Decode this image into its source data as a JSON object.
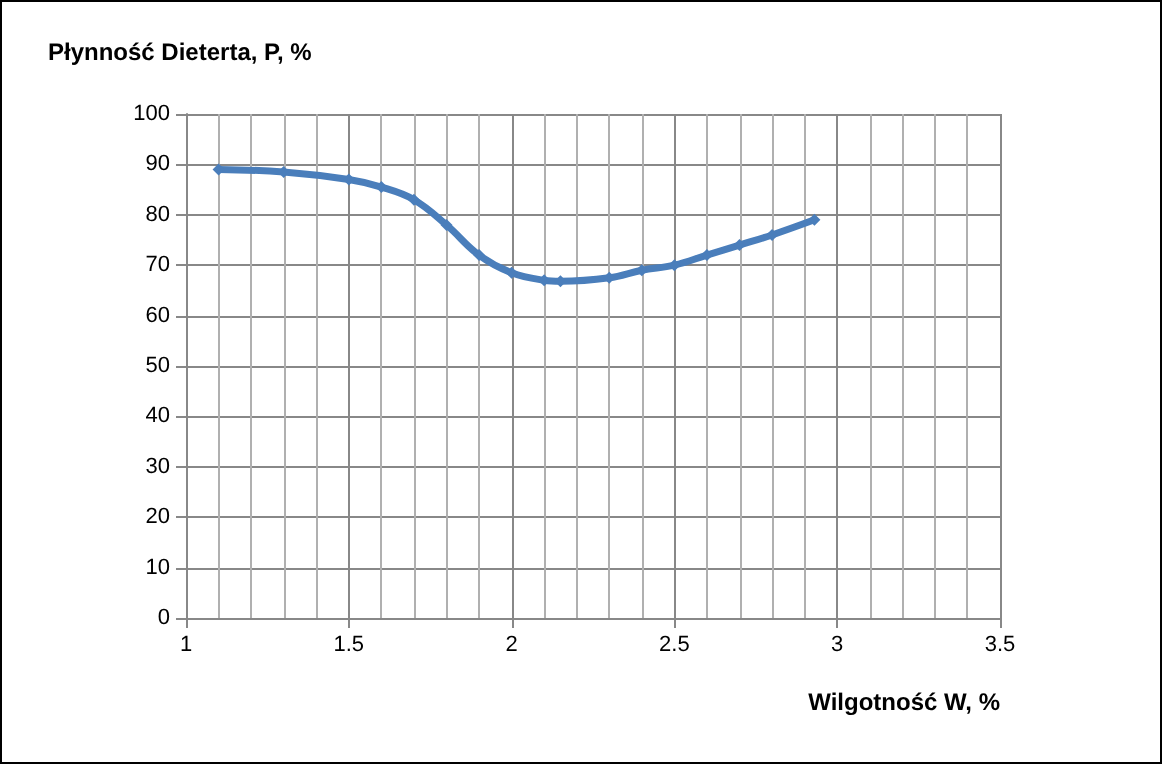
{
  "chart_data": {
    "type": "line",
    "title": "Płynność Dieterta, P, %",
    "xlabel": "Wilgotność W, %",
    "x": [
      1.1,
      1.3,
      1.5,
      1.6,
      1.7,
      1.8,
      1.9,
      2.0,
      2.1,
      2.15,
      2.3,
      2.4,
      2.5,
      2.6,
      2.7,
      2.8,
      2.93
    ],
    "series": [
      {
        "color": "#4a7ebb",
        "values": [
          89,
          88.5,
          87,
          85.5,
          83,
          78,
          72,
          68.5,
          67,
          66.8,
          67.5,
          69,
          70,
          72,
          74,
          76,
          79
        ]
      }
    ],
    "xlim": [
      1,
      3.5
    ],
    "xticks": [
      1,
      1.5,
      2,
      2.5,
      3,
      3.5
    ],
    "ylim": [
      0,
      100
    ],
    "yticks": [
      0,
      10,
      20,
      30,
      40,
      50,
      60,
      70,
      80,
      90,
      100
    ],
    "grid": true,
    "marker": "diamond",
    "line_style": "solid"
  }
}
